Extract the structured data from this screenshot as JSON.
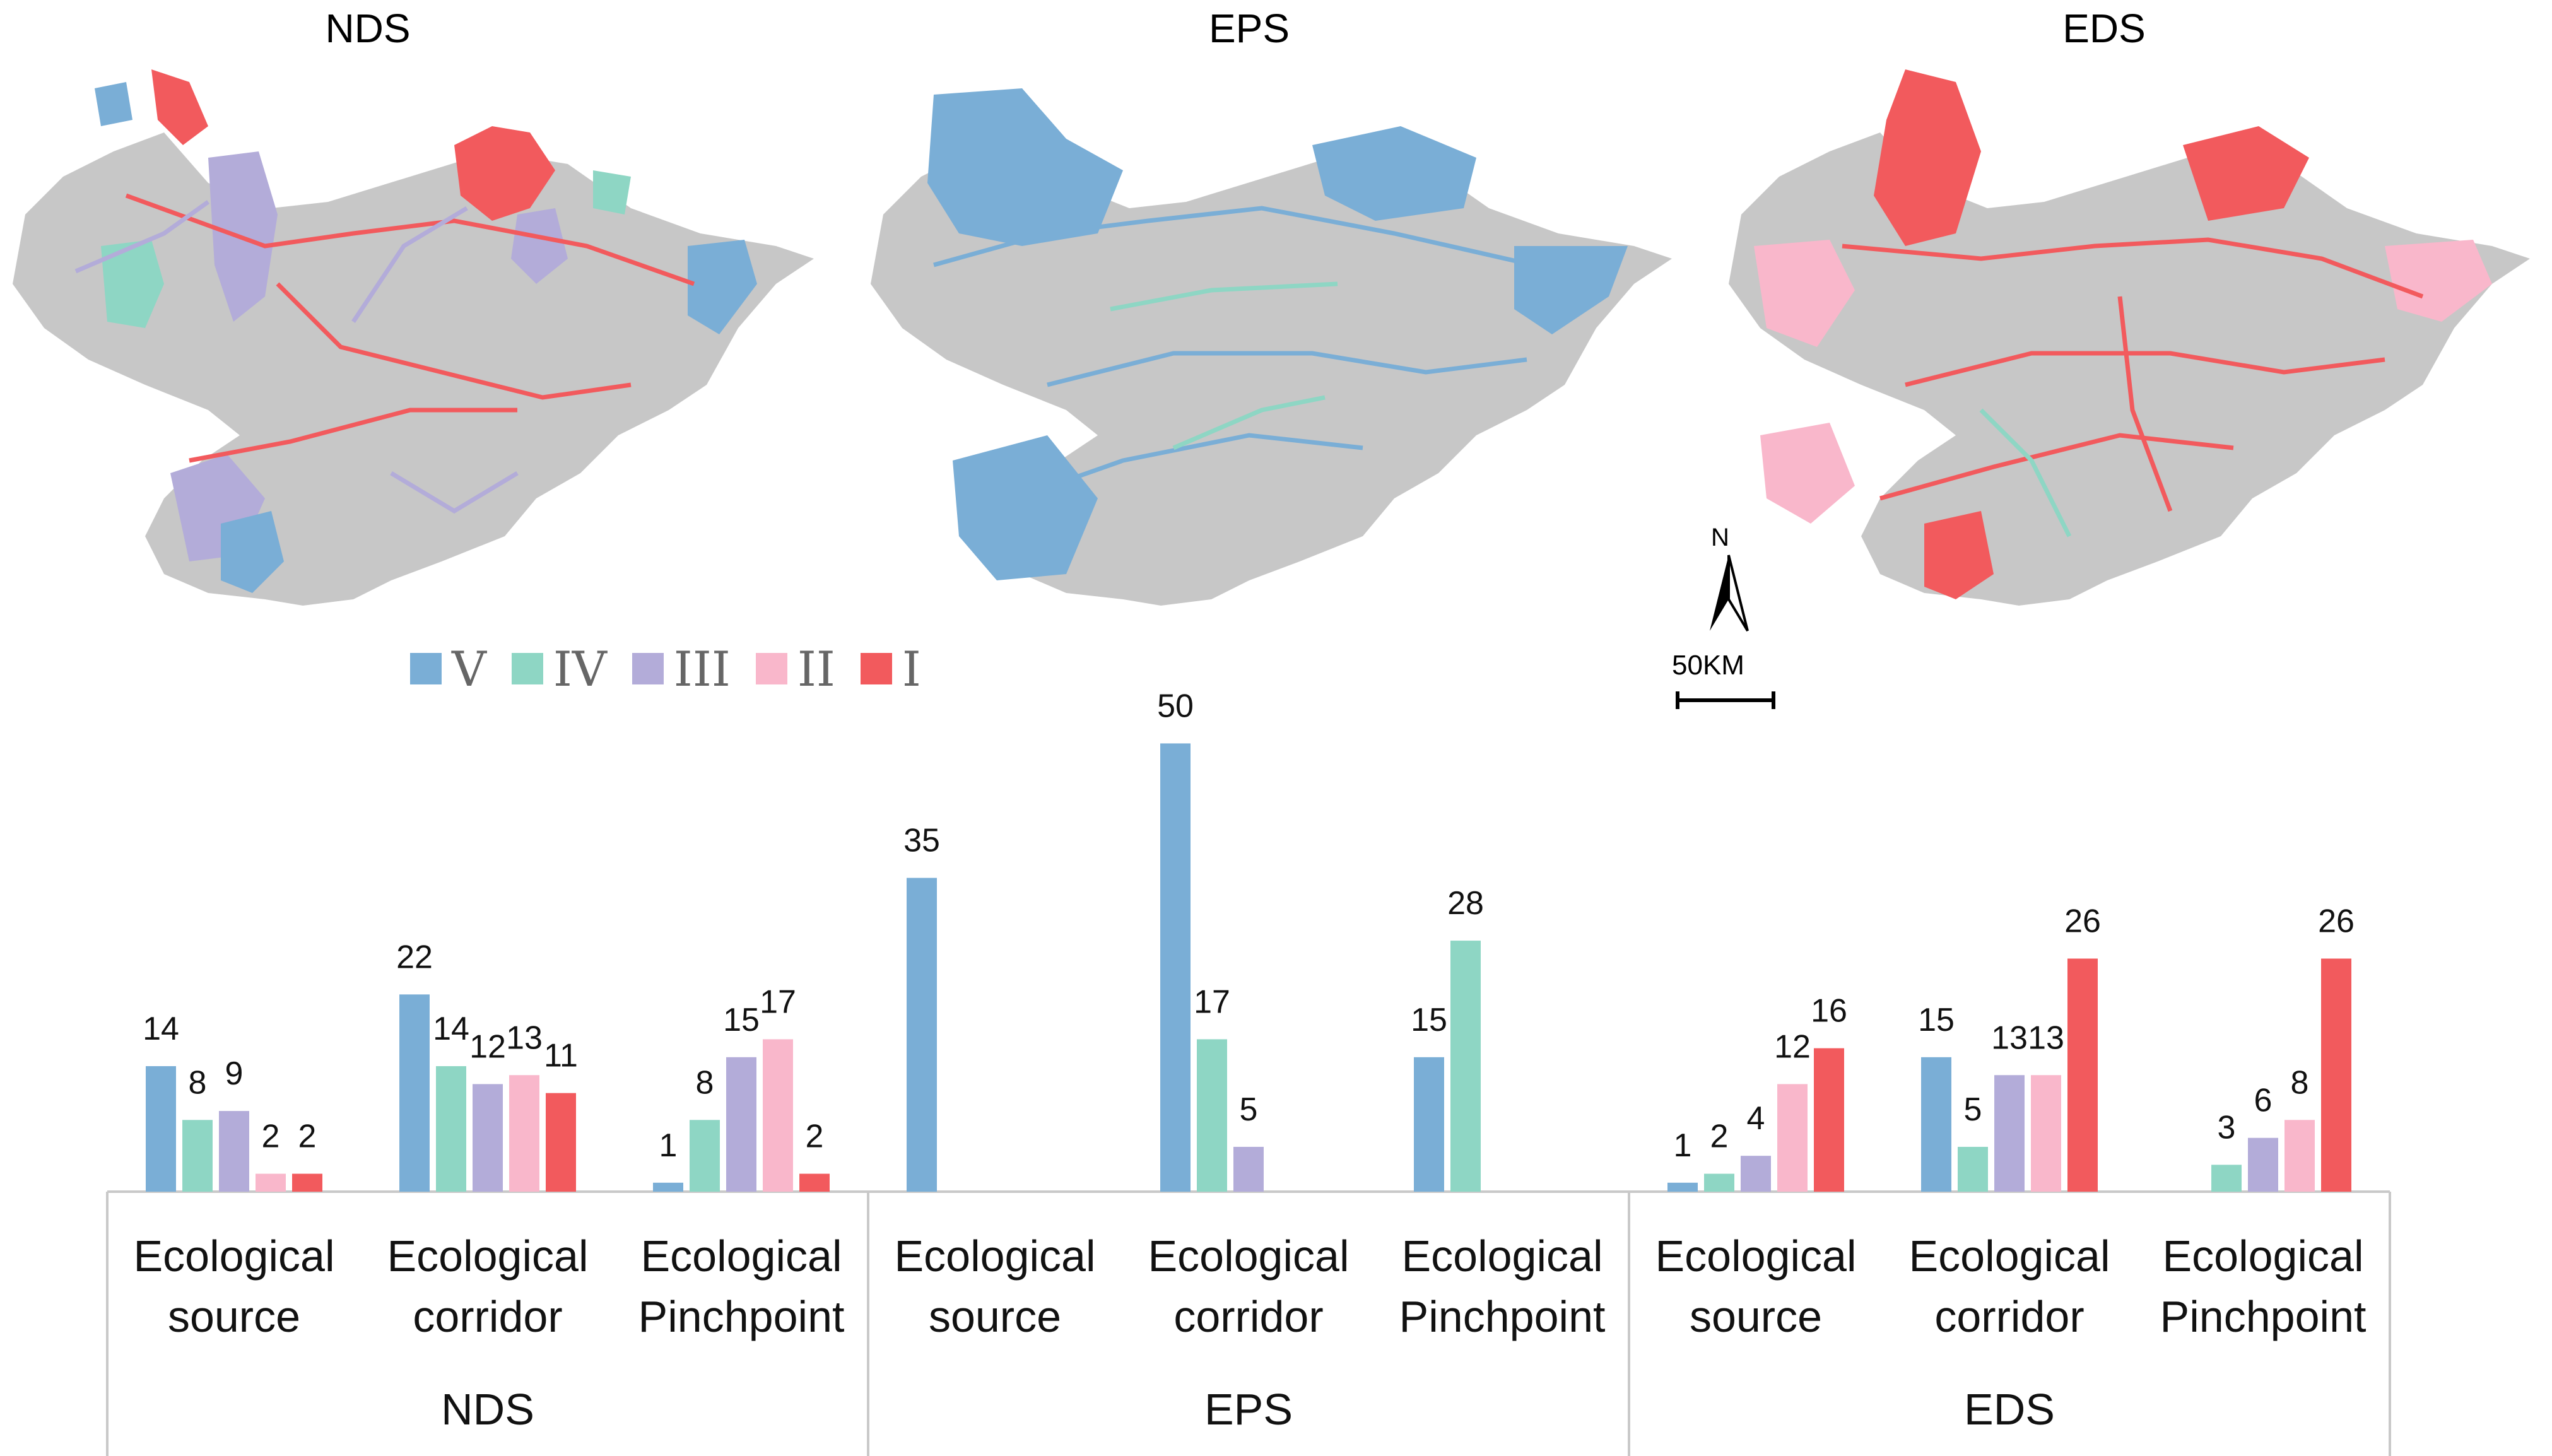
{
  "map_titles": [
    "NDS",
    "EPS",
    "EDS"
  ],
  "legend": [
    {
      "label": "V",
      "color": "#7aaed6"
    },
    {
      "label": "IV",
      "color": "#8ed6c4"
    },
    {
      "label": "III",
      "color": "#b3acd9"
    },
    {
      "label": "II",
      "color": "#f9b7cb"
    },
    {
      "label": "I",
      "color": "#f25a5d"
    }
  ],
  "map_annotations": {
    "north": "N",
    "scale": "50KM"
  },
  "chart_data": {
    "type": "bar",
    "groups": [
      "NDS",
      "EPS",
      "EDS"
    ],
    "categories": [
      "Ecological source",
      "Ecological corridor",
      "Ecological Pinchpoint"
    ],
    "category_lines": [
      [
        "Ecological",
        "source"
      ],
      [
        "Ecological",
        "corridor"
      ],
      [
        "Ecological",
        "Pinchpoint"
      ]
    ],
    "series": [
      {
        "name": "V",
        "color": "#7aaed6"
      },
      {
        "name": "IV",
        "color": "#8ed6c4"
      },
      {
        "name": "III",
        "color": "#b3acd9"
      },
      {
        "name": "II",
        "color": "#f9b7cb"
      },
      {
        "name": "I",
        "color": "#f25a5d"
      }
    ],
    "values": {
      "NDS": [
        [
          14,
          8,
          9,
          2,
          2
        ],
        [
          22,
          14,
          12,
          13,
          11
        ],
        [
          1,
          8,
          15,
          17,
          2
        ]
      ],
      "EPS": [
        [
          35,
          0,
          0,
          0,
          0
        ],
        [
          50,
          17,
          5,
          0,
          0
        ],
        [
          15,
          28,
          0,
          0,
          0
        ]
      ],
      "EDS": [
        [
          1,
          2,
          4,
          12,
          16
        ],
        [
          15,
          5,
          13,
          13,
          26
        ],
        [
          0,
          3,
          6,
          8,
          26
        ]
      ]
    },
    "labels": {
      "NDS": [
        [
          "14",
          "8",
          "9",
          "2",
          "2"
        ],
        [
          "22",
          "14",
          "12",
          "13",
          "11"
        ],
        [
          "1",
          "8",
          "15",
          "17",
          "2"
        ]
      ],
      "EPS": [
        [
          "35",
          "",
          "",
          "",
          ""
        ],
        [
          "50",
          "17",
          "5",
          "",
          ""
        ],
        [
          "15",
          "28",
          "",
          "",
          ""
        ]
      ],
      "EDS": [
        [
          "1",
          "2",
          "4",
          "12",
          "16"
        ],
        [
          "15",
          "5",
          "13",
          "13",
          "26"
        ],
        [
          "",
          "3",
          "6",
          "8",
          "26"
        ]
      ]
    },
    "ylim": [
      0,
      52
    ],
    "grid": false,
    "legend_position": "top-center"
  }
}
